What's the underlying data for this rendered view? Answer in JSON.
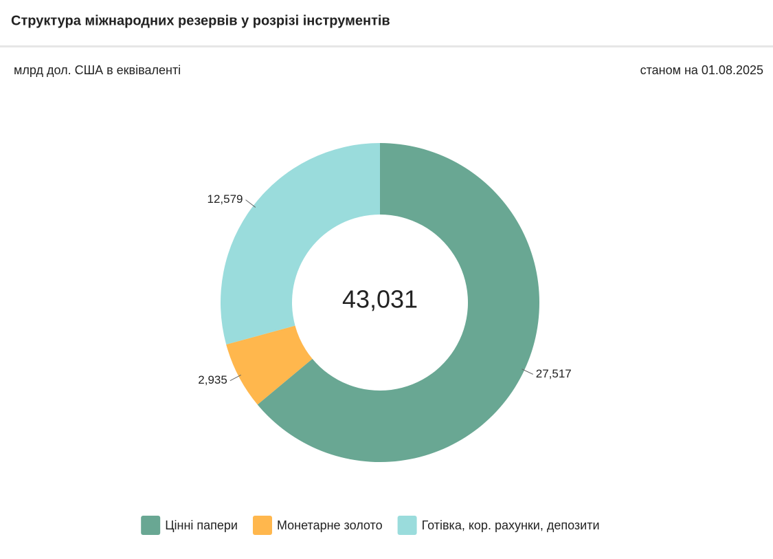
{
  "chart_data": {
    "type": "donut",
    "title": "Структура міжнародних резервів у розрізі інструментів",
    "subtitle": "млрд дол. США в еквіваленті",
    "date_note": "станом на 01.08.2025",
    "center_text": "43,031",
    "categories": [
      "Цінні папери",
      "Монетарне золото",
      "Готівка, кор. рахунки, депозити"
    ],
    "values": [
      27.517,
      2.935,
      12.579
    ],
    "value_labels": [
      "27,517",
      "2,935",
      "12,579"
    ],
    "colors": [
      "#69a793",
      "#ffb74d",
      "#9adcdc"
    ],
    "legend": "bottom"
  }
}
